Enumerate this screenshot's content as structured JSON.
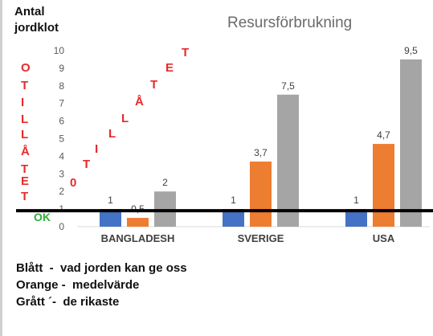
{
  "y_label_line1": "Antal",
  "y_label_line2": "jordklot",
  "ok_label": "OK",
  "vertical_word": [
    "O",
    "T",
    "I",
    "L",
    "L",
    "Å",
    "T",
    "E",
    "T"
  ],
  "diagonal_word": [
    "0",
    "T",
    "I",
    "L",
    "L",
    "Å",
    "T",
    "E",
    "T"
  ],
  "legend": [
    "Blått  -  vad jorden kan ge oss",
    "Orange -  medelvärde",
    "Grått ´-  de rikaste"
  ],
  "colors": {
    "blue": "#4472c4",
    "orange": "#ed7d31",
    "gray": "#a5a5a5",
    "red_text": "#e52b2b",
    "green_text": "#2fae3a",
    "threshold_line": "#000000"
  },
  "chart_data": {
    "type": "bar",
    "title": "Resursförbrukning",
    "categories": [
      "BANGLADESH",
      "SVERIGE",
      "USA"
    ],
    "series": [
      {
        "values": [
          1,
          1,
          1
        ],
        "labels": [
          "1",
          "1",
          "1"
        ],
        "color": "#4472c4"
      },
      {
        "values": [
          0.5,
          3.7,
          4.7
        ],
        "labels": [
          "0,5",
          "3,7",
          "4,7"
        ],
        "color": "#ed7d31"
      },
      {
        "values": [
          2,
          7.5,
          9.5
        ],
        "labels": [
          "2",
          "7,5",
          "9,5"
        ],
        "color": "#a5a5a5"
      }
    ],
    "ylim": [
      0,
      10
    ],
    "yticks": [
      0,
      1,
      2,
      3,
      4,
      5,
      6,
      7,
      8,
      9,
      10
    ],
    "grid": false,
    "threshold": 1,
    "xlabel": "",
    "ylabel": ""
  }
}
